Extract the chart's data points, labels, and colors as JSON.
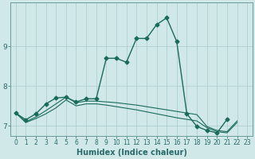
{
  "xlabel": "Humidex (Indice chaleur)",
  "bg_color": "#d0e8e8",
  "grid_color": "#b0d0d0",
  "line_color": "#1a6b5a",
  "spine_color": "#6a9a9a",
  "tick_color": "#2a6a6a",
  "xlim": [
    -0.5,
    23.5
  ],
  "ylim": [
    6.75,
    10.1
  ],
  "xticks": [
    0,
    1,
    2,
    3,
    4,
    5,
    6,
    7,
    8,
    9,
    10,
    11,
    12,
    13,
    14,
    15,
    16,
    17,
    18,
    19,
    20,
    21,
    22,
    23
  ],
  "yticks": [
    7,
    8,
    9
  ],
  "line0": [
    7.32,
    7.15,
    7.3,
    7.55,
    7.7,
    7.72,
    7.6,
    7.68,
    7.68,
    8.7,
    8.7,
    8.6,
    9.2,
    9.2,
    9.55,
    9.72,
    9.12,
    7.3,
    6.98,
    6.88,
    6.82,
    7.16
  ],
  "line1": [
    7.32,
    7.1,
    7.22,
    7.38,
    7.55,
    7.72,
    7.58,
    7.62,
    7.62,
    7.6,
    7.58,
    7.55,
    7.52,
    7.48,
    7.44,
    7.4,
    7.36,
    7.32,
    7.28,
    6.98,
    6.88,
    6.85,
    7.12
  ],
  "line2": [
    7.32,
    7.08,
    7.18,
    7.3,
    7.45,
    7.65,
    7.5,
    7.55,
    7.55,
    7.52,
    7.48,
    7.44,
    7.4,
    7.35,
    7.3,
    7.25,
    7.2,
    7.16,
    7.12,
    6.95,
    6.85,
    6.82,
    7.08
  ],
  "xlabel_fontsize": 7,
  "tick_fontsize": 5.5,
  "linewidth_main": 1.0,
  "linewidth_flat": 0.8,
  "markersize": 2.5
}
